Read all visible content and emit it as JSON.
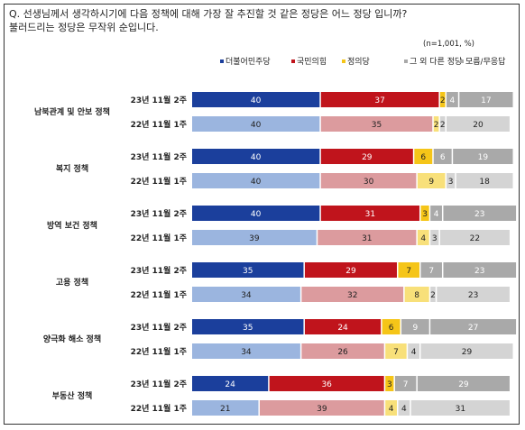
{
  "question": {
    "line1": "Q. 선생님께서 생각하시기에 다음 정책에 대해 가장 잘 추진할 것 같은 정당은 어느 정당 입니까?",
    "line2": "불러드리는 정당은 무작위 순입니다."
  },
  "note": "(n=1,001, %)",
  "chart_data": {
    "type": "bar",
    "orientation": "horizontal",
    "stacked": true,
    "percent_total": 100,
    "legend_position": "top-right",
    "series_names": [
      "더불어민주당",
      "국민의힘",
      "정의당",
      "그 외 다른 정당",
      "모름/무응답"
    ],
    "colors": {
      "dark": [
        "#1b3f9c",
        "#c0141c",
        "#f5c518",
        "#a9a9a9",
        "#a9a9a9"
      ],
      "light": [
        "#9bb5df",
        "#dc9b9e",
        "#f8e07a",
        "#d4d4d4",
        "#d4d4d4"
      ],
      "legend": [
        "#1b3f9c",
        "#c0141c",
        "#f5c518",
        "#a9a9a9",
        "#a9a9a9"
      ]
    },
    "groups": [
      {
        "category": "남북관계 및 안보 정책",
        "rows": [
          {
            "label": "23년 11월 2주",
            "values": [
              40,
              37,
              2,
              4,
              17
            ]
          },
          {
            "label": "22년 11월 1주",
            "values": [
              40,
              35,
              2,
              2,
              20
            ]
          }
        ]
      },
      {
        "category": "복지 정책",
        "rows": [
          {
            "label": "23년 11월 2주",
            "values": [
              40,
              29,
              6,
              6,
              19
            ]
          },
          {
            "label": "22년 11월 1주",
            "values": [
              40,
              30,
              9,
              3,
              18
            ]
          }
        ]
      },
      {
        "category": "방역 보건 정책",
        "rows": [
          {
            "label": "23년 11월 2주",
            "values": [
              40,
              31,
              3,
              4,
              23
            ]
          },
          {
            "label": "22년 11월 1주",
            "values": [
              39,
              31,
              4,
              3,
              22
            ]
          }
        ]
      },
      {
        "category": "고용 정책",
        "rows": [
          {
            "label": "23년 11월 2주",
            "values": [
              35,
              29,
              7,
              7,
              23
            ]
          },
          {
            "label": "22년 11월 1주",
            "values": [
              34,
              32,
              8,
              2,
              23
            ]
          }
        ]
      },
      {
        "category": "양극화 해소 정책",
        "rows": [
          {
            "label": "23년 11월 2주",
            "values": [
              35,
              24,
              6,
              9,
              27
            ]
          },
          {
            "label": "22년 11월 1주",
            "values": [
              34,
              26,
              7,
              4,
              29
            ]
          }
        ]
      },
      {
        "category": "부동산 정책",
        "rows": [
          {
            "label": "23년 11월 2주",
            "values": [
              24,
              36,
              3,
              7,
              29
            ]
          },
          {
            "label": "22년 11월 1주",
            "values": [
              21,
              39,
              4,
              4,
              31
            ]
          }
        ]
      }
    ]
  }
}
